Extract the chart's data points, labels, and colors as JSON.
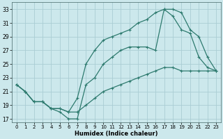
{
  "xlabel": "Humidex (Indice chaleur)",
  "bg_color": "#cce8ec",
  "grid_color": "#aacdd4",
  "line_color": "#2d7a6e",
  "xlim": [
    -0.5,
    23.5
  ],
  "ylim": [
    16.5,
    34.0
  ],
  "xticks": [
    0,
    1,
    2,
    3,
    4,
    5,
    6,
    7,
    8,
    9,
    10,
    11,
    12,
    13,
    14,
    15,
    16,
    17,
    18,
    19,
    20,
    21,
    22,
    23
  ],
  "yticks": [
    17,
    19,
    21,
    23,
    25,
    27,
    29,
    31,
    33
  ],
  "line1_x": [
    0,
    1,
    2,
    3,
    4,
    5,
    6,
    7,
    8,
    9,
    10,
    11,
    12,
    13,
    14,
    15,
    16,
    17,
    18,
    19,
    20,
    21,
    22,
    23
  ],
  "line1_y": [
    22.0,
    21.0,
    19.5,
    19.5,
    18.5,
    18.5,
    18.0,
    18.0,
    19.0,
    20.0,
    21.0,
    21.5,
    22.0,
    22.5,
    23.0,
    23.5,
    24.0,
    24.5,
    24.5,
    24.0,
    24.0,
    24.0,
    24.0,
    24.0
  ],
  "line2_x": [
    0,
    1,
    2,
    3,
    4,
    5,
    6,
    7,
    8,
    9,
    10,
    11,
    12,
    13,
    14,
    15,
    16,
    17,
    18,
    19,
    20,
    21,
    22,
    23
  ],
  "line2_y": [
    22.0,
    21.0,
    19.5,
    19.5,
    18.5,
    18.5,
    18.0,
    20.0,
    25.0,
    27.0,
    28.5,
    29.0,
    29.5,
    30.0,
    31.0,
    31.5,
    32.5,
    33.0,
    33.0,
    32.5,
    30.0,
    29.0,
    26.0,
    24.0
  ],
  "line3_x": [
    0,
    1,
    2,
    3,
    4,
    5,
    6,
    7,
    8,
    9,
    10,
    11,
    12,
    13,
    14,
    15,
    16,
    17,
    18,
    19,
    20,
    21,
    22,
    23
  ],
  "line3_y": [
    22.0,
    21.0,
    19.5,
    19.5,
    18.5,
    18.0,
    17.0,
    17.0,
    22.0,
    23.0,
    25.0,
    26.0,
    27.0,
    27.5,
    27.5,
    27.5,
    27.0,
    33.0,
    32.0,
    30.0,
    29.5,
    26.0,
    24.5,
    24.0
  ]
}
